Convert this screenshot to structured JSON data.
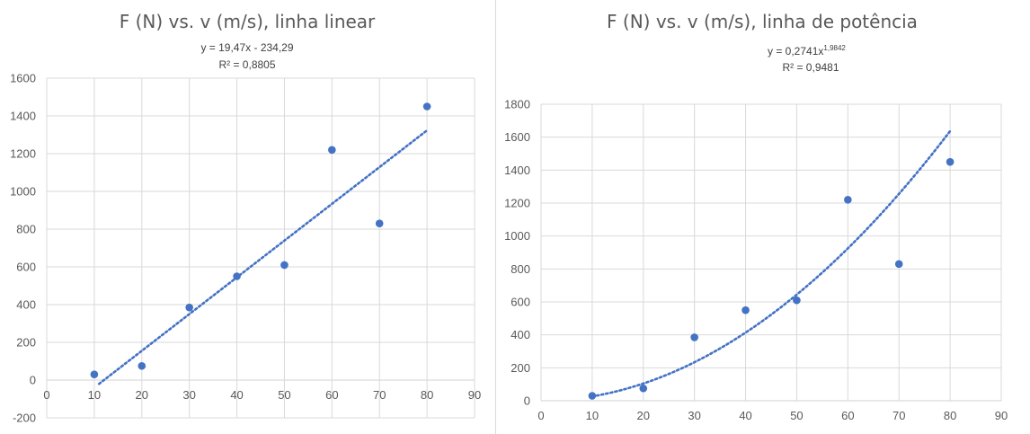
{
  "chart_data": [
    {
      "type": "scatter",
      "title": "F (N) vs. v (m/s), linha linear",
      "trendline": {
        "kind": "linear",
        "equation": "y = 19,47x - 234,29",
        "r2": "R² = 0,8805",
        "slope": 19.47,
        "intercept": -234.29,
        "x_range": [
          11,
          80
        ]
      },
      "x": [
        10,
        20,
        30,
        40,
        50,
        60,
        70,
        80
      ],
      "y": [
        30,
        75,
        385,
        550,
        610,
        1220,
        830,
        1450
      ],
      "xlim": [
        0,
        90
      ],
      "ylim": [
        -200,
        1600
      ],
      "xticks": [
        0,
        10,
        20,
        30,
        40,
        50,
        60,
        70,
        80,
        90
      ],
      "yticks": [
        -200,
        0,
        200,
        400,
        600,
        800,
        1000,
        1200,
        1400,
        1600
      ],
      "grid": true,
      "colors": {
        "points": "#4472c4",
        "trendline": "#4472c4",
        "grid": "#d9d9d9"
      }
    },
    {
      "type": "scatter",
      "title": "F (N) vs. v (m/s), linha de potência",
      "trendline": {
        "kind": "power",
        "equation_prefix": "y = 0,2741x",
        "equation_exponent": "1,9842",
        "r2": "R² = 0,9481",
        "coefficient": 0.2741,
        "exponent": 1.9842,
        "x_range": [
          10,
          80
        ]
      },
      "x": [
        10,
        20,
        30,
        40,
        50,
        60,
        70,
        80
      ],
      "y": [
        30,
        75,
        385,
        550,
        610,
        1220,
        830,
        1450
      ],
      "xlim": [
        0,
        90
      ],
      "ylim": [
        0,
        1800
      ],
      "xticks": [
        0,
        10,
        20,
        30,
        40,
        50,
        60,
        70,
        80,
        90
      ],
      "yticks": [
        0,
        200,
        400,
        600,
        800,
        1000,
        1200,
        1400,
        1600,
        1800
      ],
      "grid": true,
      "colors": {
        "points": "#4472c4",
        "trendline": "#4472c4",
        "grid": "#d9d9d9"
      }
    }
  ]
}
